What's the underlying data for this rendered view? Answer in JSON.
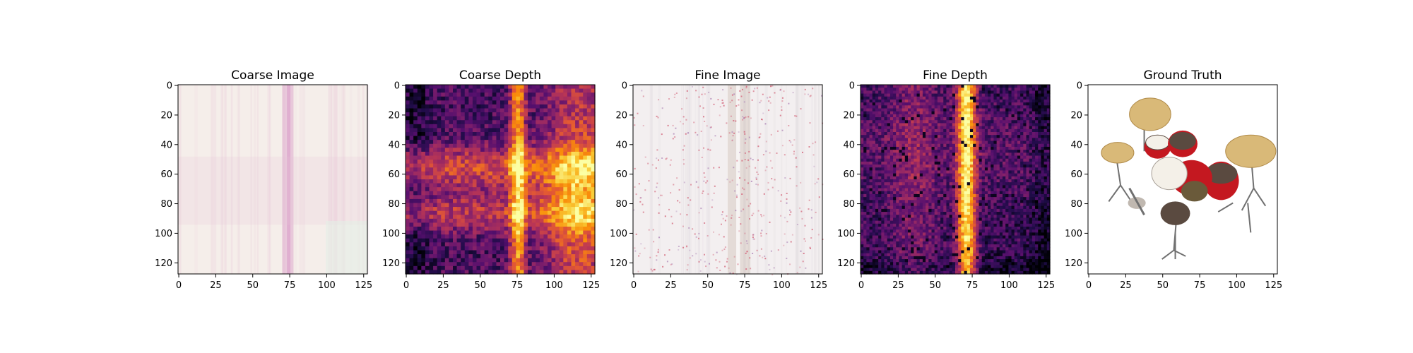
{
  "chart_data": [
    {
      "type": "heatmap",
      "title": "Coarse Image",
      "x_ticks": [
        0,
        25,
        50,
        75,
        100,
        125
      ],
      "y_ticks": [
        0,
        20,
        40,
        60,
        80,
        100,
        120
      ],
      "xlim": [
        0,
        128
      ],
      "ylim": [
        0,
        128
      ],
      "content": "rgb-image",
      "style": "pale-pink",
      "colors": {
        "base": "#f5eeea",
        "streak": "#d99ac8",
        "band": "#e8c2d6",
        "tint_low": "#e4eee6"
      }
    },
    {
      "type": "heatmap",
      "title": "Coarse Depth",
      "x_ticks": [
        0,
        25,
        50,
        75,
        100,
        125
      ],
      "y_ticks": [
        0,
        20,
        40,
        60,
        80,
        100,
        120
      ],
      "xlim": [
        0,
        128
      ],
      "ylim": [
        0,
        128
      ],
      "content": "depth-map",
      "colormap": "inferno",
      "style": "coarse"
    },
    {
      "type": "heatmap",
      "title": "Fine Image",
      "x_ticks": [
        0,
        25,
        50,
        75,
        100,
        125
      ],
      "y_ticks": [
        0,
        20,
        40,
        60,
        80,
        100,
        120
      ],
      "xlim": [
        0,
        128
      ],
      "ylim": [
        0,
        128
      ],
      "content": "rgb-image",
      "style": "speckled",
      "colors": {
        "base": "#f3eff0",
        "streak": "#c8b8a8",
        "speckle": "#d46a7e",
        "speckle_alt": "#b088b8"
      }
    },
    {
      "type": "heatmap",
      "title": "Fine Depth",
      "x_ticks": [
        0,
        25,
        50,
        75,
        100,
        125
      ],
      "y_ticks": [
        0,
        20,
        40,
        60,
        80,
        100,
        120
      ],
      "xlim": [
        0,
        128
      ],
      "ylim": [
        0,
        128
      ],
      "content": "depth-map",
      "colormap": "inferno",
      "style": "fine"
    },
    {
      "type": "heatmap",
      "title": "Ground Truth",
      "x_ticks": [
        0,
        25,
        50,
        75,
        100,
        125
      ],
      "y_ticks": [
        0,
        20,
        40,
        60,
        80,
        100,
        120
      ],
      "xlim": [
        0,
        128
      ],
      "ylim": [
        0,
        128
      ],
      "content": "drum-kit-photo",
      "colors": {
        "cymbal": "#d9b978",
        "cymbal_dark": "#b08a48",
        "drum_red": "#c41820",
        "drum_dark": "#5a4a40",
        "head_white": "#f4f0e8",
        "stand": "#707070"
      }
    }
  ]
}
